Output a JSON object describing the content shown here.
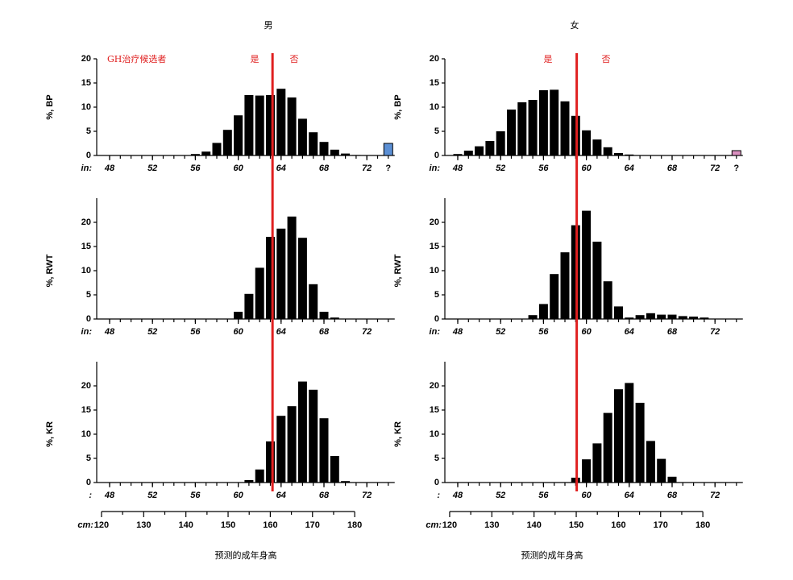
{
  "chart_data": [
    {
      "type": "bar",
      "title": "男",
      "ylabel": "%, BP",
      "unit_label": "in:",
      "annotations": [
        "GH治疗候选者",
        "是",
        "否"
      ],
      "threshold": 63.2,
      "threshold_color": "#e02020",
      "x": [
        56,
        57,
        58,
        59,
        60,
        61,
        62,
        63,
        64,
        65,
        66,
        67,
        68,
        69,
        70,
        71
      ],
      "values": [
        0.3,
        0.8,
        2.6,
        5.3,
        8.3,
        12.5,
        12.4,
        12.5,
        13.8,
        12,
        7.6,
        4.8,
        2.8,
        1.2,
        0.4,
        0.1
      ],
      "color": "#000000",
      "unknown": {
        "label": "?",
        "value": 2.5,
        "color": "#5b8fd4"
      },
      "xlim": [
        46.8,
        74.6
      ],
      "xticks": [
        48,
        52,
        56,
        60,
        64,
        68,
        72
      ],
      "ylim": [
        0,
        20
      ],
      "yticks": [
        0,
        5,
        10,
        15,
        20
      ]
    },
    {
      "type": "bar",
      "title": "女",
      "ylabel": "%, BP",
      "unit_label": "in:",
      "annotations": [
        "是",
        "否"
      ],
      "threshold": 59.1,
      "threshold_color": "#e02020",
      "x": [
        48,
        49,
        50,
        51,
        52,
        53,
        54,
        55,
        56,
        57,
        58,
        59,
        60,
        61,
        62,
        63,
        64
      ],
      "values": [
        0.3,
        1.0,
        1.9,
        3.0,
        5.0,
        9.5,
        11.0,
        11.5,
        13.5,
        13.6,
        11.2,
        8.2,
        5.2,
        3.3,
        1.7,
        0.5,
        0.2
      ],
      "color": "#000000",
      "unknown": {
        "label": "?",
        "value": 1.0,
        "color": "#d98fbf"
      },
      "xlim": [
        46.8,
        74.6
      ],
      "xticks": [
        48,
        52,
        56,
        60,
        64,
        68,
        72
      ],
      "ylim": [
        0,
        20
      ],
      "yticks": [
        0,
        5,
        10,
        15,
        20
      ]
    },
    {
      "type": "bar",
      "ylabel": "%, RWT",
      "unit_label": "in:",
      "x": [
        60,
        61,
        62,
        63,
        64,
        65,
        66,
        67,
        68,
        69
      ],
      "values": [
        1.5,
        5.2,
        10.6,
        17,
        18.7,
        21.2,
        16.8,
        7.2,
        1.5,
        0.3
      ],
      "color": "#000000",
      "xlim": [
        46.8,
        74.6
      ],
      "xticks": [
        48,
        52,
        56,
        60,
        64,
        68,
        72
      ],
      "ylim": [
        0,
        25
      ],
      "yticks": [
        0,
        5,
        10,
        15,
        20
      ]
    },
    {
      "type": "bar",
      "ylabel": "%, RWT",
      "unit_label": "in:",
      "x": [
        55,
        56,
        57,
        58,
        59,
        60,
        61,
        62,
        63,
        64,
        65,
        66,
        67,
        68,
        69,
        70,
        71
      ],
      "values": [
        0.8,
        3.1,
        9.3,
        13.8,
        19.4,
        22.4,
        16,
        7.8,
        2.6,
        0.3,
        0.8,
        1.2,
        0.9,
        0.9,
        0.6,
        0.5,
        0.3
      ],
      "color": "#000000",
      "xlim": [
        46.8,
        74.6
      ],
      "xticks": [
        48,
        52,
        56,
        60,
        64,
        68,
        72
      ],
      "ylim": [
        0,
        25
      ],
      "yticks": [
        0,
        5,
        10,
        15,
        20
      ]
    },
    {
      "type": "bar",
      "ylabel": "%, KR",
      "unit_label": ":",
      "cm_label": "cm:",
      "xlabel": "预测的成年身高",
      "x": [
        61,
        62,
        63,
        64,
        65,
        66,
        67,
        68,
        69,
        70
      ],
      "values": [
        0.5,
        2.7,
        8.5,
        13.8,
        15.8,
        20.9,
        19.2,
        13.3,
        5.5,
        0.3
      ],
      "color": "#000000",
      "xlim": [
        46.8,
        74.6
      ],
      "xticks": [
        48,
        52,
        56,
        60,
        64,
        68,
        72
      ],
      "ylim": [
        0,
        25
      ],
      "yticks": [
        0,
        5,
        10,
        15,
        20
      ],
      "cm_ticks": [
        120,
        130,
        140,
        150,
        160,
        170,
        180
      ]
    },
    {
      "type": "bar",
      "ylabel": "%, KR",
      "unit_label": ":",
      "cm_label": "cm:",
      "xlabel": "预测的成年身高",
      "x": [
        59,
        60,
        61,
        62,
        63,
        64,
        65,
        66,
        67,
        68
      ],
      "values": [
        1.0,
        4.8,
        8.1,
        14.4,
        19.3,
        20.6,
        16.5,
        8.6,
        4.9,
        1.2
      ],
      "color": "#000000",
      "xlim": [
        46.8,
        74.6
      ],
      "xticks": [
        48,
        52,
        56,
        60,
        64,
        68,
        72
      ],
      "ylim": [
        0,
        25
      ],
      "yticks": [
        0,
        5,
        10,
        15,
        20
      ],
      "cm_ticks": [
        120,
        130,
        140,
        150,
        160,
        170,
        180
      ]
    }
  ]
}
